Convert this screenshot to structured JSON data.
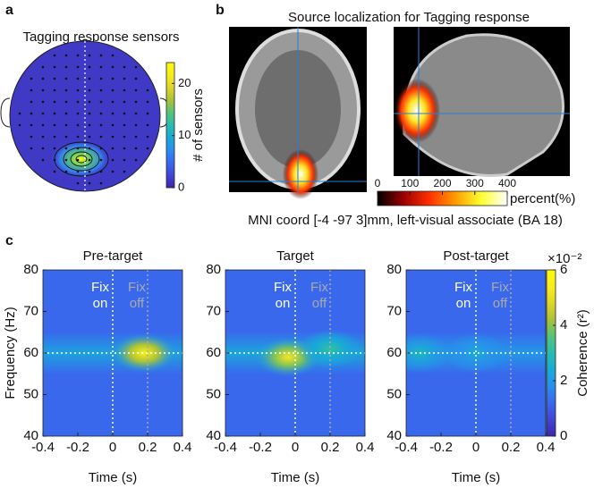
{
  "panel_a": {
    "label": "a",
    "title": "Tagging response sensors",
    "colorbar_label": "# of sensors",
    "clim": [
      0,
      24
    ],
    "cticks": [
      0,
      10,
      20
    ],
    "background": 1.5,
    "peak": 24
  },
  "panel_b": {
    "label": "b",
    "title": "Source localization for Tagging response",
    "colorbar_label": "percent(%)",
    "clim": [
      0,
      400
    ],
    "cticks": [
      0,
      100,
      200,
      300,
      400
    ],
    "peak": 400,
    "caption": "MNI coord [-4 -97 3]mm, left-visual associate (BA 18)"
  },
  "panel_c": {
    "label": "c",
    "xlabel": "Time (s)",
    "ylabel": "Frequency (Hz)",
    "xlim": [
      -0.4,
      0.4
    ],
    "xticks": [
      -0.4,
      -0.2,
      0,
      0.2,
      0.4
    ],
    "ylim": [
      40,
      80
    ],
    "yticks": [
      40,
      50,
      60,
      70,
      80
    ],
    "colorbar_label": "Coherence (r²)",
    "colorbar_exponent": "×10⁻²",
    "clim": [
      0,
      6
    ],
    "cticks": [
      0,
      2,
      4,
      6
    ],
    "fix_on": {
      "text": [
        "Fix",
        "on"
      ],
      "time": 0
    },
    "fix_off": {
      "text": [
        "Fix",
        "off"
      ],
      "time": 0.2
    },
    "reference_frequency": 60,
    "subplots": [
      {
        "title": "Pre-target",
        "background": 1.2,
        "band": {
          "frequency": 60,
          "coherence": 2.2
        },
        "peaks": [
          {
            "time": 0.18,
            "frequency": 60,
            "coherence": 5.6
          }
        ]
      },
      {
        "title": "Target",
        "background": 1.2,
        "band": {
          "frequency": 60,
          "coherence": 2.3
        },
        "peaks": [
          {
            "time": -0.04,
            "frequency": 59,
            "coherence": 5.2
          },
          {
            "time": 0.2,
            "frequency": 61,
            "coherence": 3.2
          }
        ]
      },
      {
        "title": "Post-target",
        "background": 1.2,
        "band": {
          "frequency": 60,
          "coherence": 2.0
        },
        "peaks": [
          {
            "time": -0.32,
            "frequency": 60,
            "coherence": 2.8
          },
          {
            "time": 0.0,
            "frequency": 60,
            "coherence": 2.5
          }
        ]
      }
    ]
  }
}
